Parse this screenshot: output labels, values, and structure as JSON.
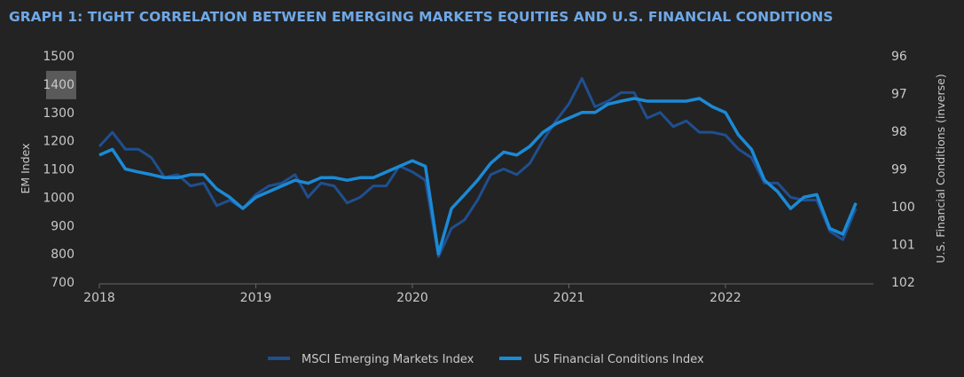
{
  "chart_data": {
    "type": "line",
    "title": "GRAPH 1: TIGHT CORRELATION BETWEEN EMERGING MARKETS EQUITIES AND U.S. FINANCIAL CONDITIONS",
    "ylabel": "EM Index",
    "y2label": "U.S. Financial Conditions (inverse)",
    "ylim": [
      700,
      1500
    ],
    "y2lim": [
      96,
      102
    ],
    "y2_inverted": true,
    "yticks": [
      "1500",
      "1400",
      "1300",
      "1200",
      "1100",
      "1000",
      "900",
      "800",
      "700"
    ],
    "y2ticks": [
      "96",
      "97",
      "98",
      "99",
      "100",
      "101",
      "102"
    ],
    "xticks": [
      "2018",
      "2019",
      "2020",
      "2021",
      "2022"
    ],
    "highlighted_ytick": "1400",
    "legend_position": "bottom",
    "start": "2018-01",
    "frequency": "monthly",
    "series": [
      {
        "name": "MSCI Emerging Markets Index",
        "axis": "left",
        "color": "#1f4f8f",
        "values": [
          1180,
          1230,
          1170,
          1170,
          1140,
          1070,
          1080,
          1040,
          1050,
          970,
          990,
          960,
          1010,
          1040,
          1050,
          1080,
          1000,
          1050,
          1040,
          980,
          1000,
          1040,
          1040,
          1110,
          1090,
          1060,
          790,
          890,
          920,
          990,
          1080,
          1100,
          1080,
          1120,
          1200,
          1270,
          1330,
          1420,
          1320,
          1340,
          1370,
          1370,
          1280,
          1300,
          1250,
          1270,
          1230,
          1230,
          1220,
          1170,
          1140,
          1050,
          1050,
          1000,
          990,
          990,
          880,
          850,
          960
        ]
      },
      {
        "name": "US Financial Conditions Index",
        "axis": "right",
        "color": "#1b8ad6",
        "values": [
          98.63,
          98.48,
          99.0,
          99.08,
          99.15,
          99.23,
          99.23,
          99.15,
          99.15,
          99.53,
          99.75,
          100.05,
          99.75,
          99.6,
          99.45,
          99.3,
          99.38,
          99.23,
          99.23,
          99.3,
          99.23,
          99.23,
          99.08,
          98.93,
          98.78,
          98.93,
          101.25,
          100.05,
          99.68,
          99.3,
          98.85,
          98.55,
          98.63,
          98.4,
          98.03,
          97.8,
          97.65,
          97.5,
          97.5,
          97.28,
          97.2,
          97.13,
          97.2,
          97.2,
          97.2,
          97.2,
          97.13,
          97.35,
          97.5,
          98.1,
          98.48,
          99.3,
          99.6,
          100.05,
          99.75,
          99.68,
          100.58,
          100.73,
          99.9
        ]
      }
    ]
  }
}
